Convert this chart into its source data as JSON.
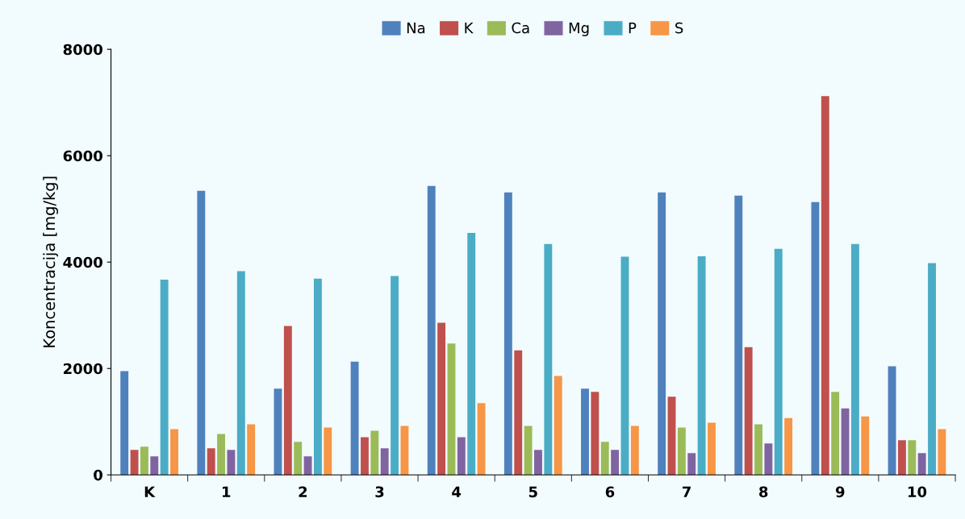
{
  "chart_data": {
    "type": "bar",
    "ylabel": "Koncentracija [mg/kg]",
    "categories": [
      "K",
      "1",
      "2",
      "3",
      "4",
      "5",
      "6",
      "7",
      "8",
      "9",
      "10"
    ],
    "series": [
      {
        "name": "Na",
        "color": "#4f81bd",
        "values": [
          1950,
          5340,
          1620,
          2130,
          5430,
          5310,
          1620,
          5310,
          5250,
          5130,
          2040
        ]
      },
      {
        "name": "K",
        "color": "#c0504d",
        "values": [
          470,
          500,
          2800,
          710,
          2860,
          2340,
          1560,
          1470,
          2400,
          7120,
          650
        ]
      },
      {
        "name": "Ca",
        "color": "#9bbb59",
        "values": [
          530,
          770,
          620,
          830,
          2470,
          920,
          620,
          890,
          950,
          1560,
          650
        ]
      },
      {
        "name": "Mg",
        "color": "#8064a2",
        "values": [
          350,
          470,
          350,
          500,
          710,
          470,
          470,
          410,
          590,
          1250,
          410
        ]
      },
      {
        "name": "P",
        "color": "#4bacc6",
        "values": [
          3670,
          3830,
          3690,
          3740,
          4550,
          4340,
          4100,
          4110,
          4250,
          4340,
          3980
        ]
      },
      {
        "name": "S",
        "color": "#f79646",
        "values": [
          860,
          950,
          890,
          920,
          1350,
          1860,
          920,
          980,
          1070,
          1100,
          860
        ]
      }
    ],
    "ylim": [
      0,
      8000
    ],
    "yticks": [
      0,
      2000,
      4000,
      6000,
      8000
    ],
    "grid": false,
    "legend": "top"
  }
}
